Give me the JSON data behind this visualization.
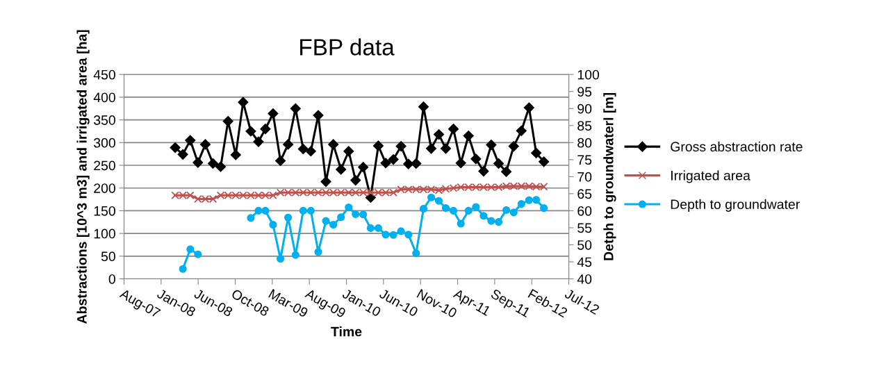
{
  "chart_data": {
    "type": "line",
    "title": "FBP data",
    "xlabel": "Time",
    "ylabel": "Abstractions [10^3 m3] and irrigated area [ha]",
    "y2label": "Detph to groundwaterl [m]",
    "x": [
      "2008-03",
      "2008-04",
      "2008-05",
      "2008-06",
      "2008-07",
      "2008-08",
      "2008-09",
      "2008-10",
      "2008-11",
      "2008-12",
      "2009-01",
      "2009-02",
      "2009-03",
      "2009-04",
      "2009-05",
      "2009-06",
      "2009-07",
      "2009-08",
      "2009-09",
      "2009-10",
      "2009-11",
      "2009-12",
      "2010-01",
      "2010-02",
      "2010-03",
      "2010-04",
      "2010-05",
      "2010-06",
      "2010-07",
      "2010-08",
      "2010-09",
      "2010-10",
      "2010-11",
      "2010-12",
      "2011-01",
      "2011-02",
      "2011-03",
      "2011-04",
      "2011-05",
      "2011-06",
      "2011-07",
      "2011-08",
      "2011-09",
      "2011-10",
      "2011-11",
      "2011-12",
      "2012-01",
      "2012-02",
      "2012-03",
      "2012-04"
    ],
    "series": [
      {
        "name": "Gross abstraction rate",
        "color": "#000000",
        "marker": "diamond",
        "values": [
          289,
          274,
          305,
          256,
          296,
          254,
          247,
          347,
          273,
          389,
          325,
          302,
          330,
          364,
          260,
          296,
          375,
          286,
          281,
          360,
          214,
          296,
          241,
          281,
          217,
          246,
          179,
          293,
          255,
          263,
          292,
          253,
          254,
          379,
          287,
          318,
          287,
          330,
          255,
          315,
          264,
          237,
          295,
          254,
          236,
          292,
          326,
          377,
          277,
          258
        ]
      },
      {
        "name": "Irrigated area",
        "color": "#c0504d",
        "marker": "cross",
        "values": [
          184,
          184,
          184,
          176,
          176,
          176,
          184,
          184,
          184,
          184,
          184,
          184,
          184,
          184,
          190,
          190,
          190,
          190,
          190,
          190,
          190,
          190,
          190,
          190,
          190,
          190,
          190,
          190,
          190,
          190,
          197,
          197,
          197,
          197,
          197,
          195,
          198,
          200,
          202,
          202,
          202,
          202,
          202,
          202,
          204,
          204,
          204,
          204,
          203,
          203
        ]
      },
      {
        "name": "Depth to groundwater",
        "color": "#00b0f0",
        "marker": "circle",
        "axis": "y2",
        "values": [
          null,
          42.9,
          48.7,
          47.2,
          null,
          null,
          null,
          null,
          null,
          null,
          57.9,
          60.0,
          60.0,
          55.9,
          45.9,
          58.0,
          47.0,
          60.0,
          60.0,
          47.9,
          57.0,
          55.9,
          58.1,
          61.0,
          59.0,
          58.9,
          54.9,
          54.9,
          53.0,
          52.9,
          54.0,
          53.0,
          47.5,
          60.6,
          63.9,
          62.9,
          60.8,
          60.0,
          56.2,
          60.0,
          61.1,
          58.5,
          57.0,
          56.7,
          60.2,
          59.5,
          62.0,
          63.1,
          63.2,
          60.8
        ]
      }
    ],
    "xlim": [
      "2007-08-07",
      "2012-07-11"
    ],
    "xticks": [
      {
        "value": "2007-08-07",
        "label": "Aug-07"
      },
      {
        "value": "2008-01-04",
        "label": "Jan-08"
      },
      {
        "value": "2008-06-02",
        "label": "Jun-08"
      },
      {
        "value": "2008-10-30",
        "label": "Oct-08"
      },
      {
        "value": "2009-03-29",
        "label": "Mar-09"
      },
      {
        "value": "2009-08-26",
        "label": "Aug-09"
      },
      {
        "value": "2010-01-23",
        "label": "Jan-10"
      },
      {
        "value": "2010-06-22",
        "label": "Jun-10"
      },
      {
        "value": "2010-11-19",
        "label": "Nov-10"
      },
      {
        "value": "2011-04-18",
        "label": "Apr-11"
      },
      {
        "value": "2011-09-15",
        "label": "Sep-11"
      },
      {
        "value": "2012-02-12",
        "label": "Feb-12"
      },
      {
        "value": "2012-07-11",
        "label": "Jul-12"
      }
    ],
    "ylim": [
      0,
      450
    ],
    "yticks": [
      0,
      50,
      100,
      150,
      200,
      250,
      300,
      350,
      400,
      450
    ],
    "y2lim": [
      40,
      100
    ],
    "y2ticks": [
      40,
      45,
      50,
      55,
      60,
      65,
      70,
      75,
      80,
      85,
      90,
      95,
      100
    ],
    "grid": "y",
    "legend": "right"
  }
}
